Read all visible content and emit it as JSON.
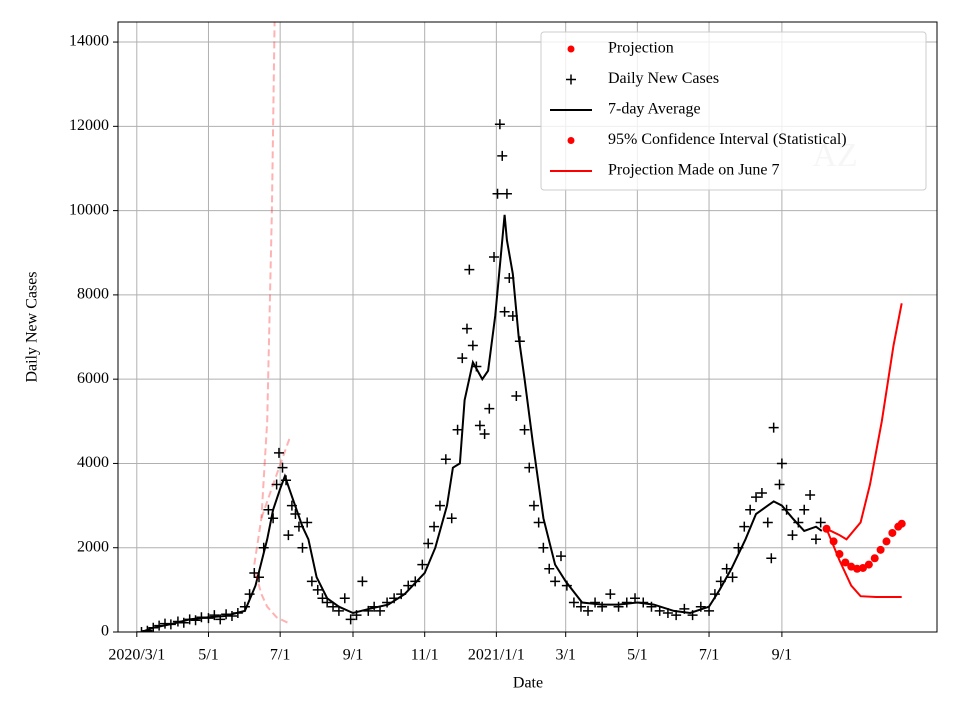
{
  "chart_data": {
    "type": "line",
    "xlabel": "Date",
    "ylabel": "Daily New Cases",
    "watermark": "AZ",
    "grid": true,
    "legend": "upper right",
    "xlim": [
      "2020-02-14",
      "2022-01-11"
    ],
    "ylim": [
      0,
      14476
    ],
    "yticks": [
      0,
      2000,
      4000,
      6000,
      8000,
      10000,
      12000,
      14000
    ],
    "xticks": [
      {
        "value": "2020-03-01",
        "label": "2020/3/1"
      },
      {
        "value": "2020-05-01",
        "label": "5/1"
      },
      {
        "value": "2020-07-01",
        "label": "7/1"
      },
      {
        "value": "2020-09-01",
        "label": "9/1"
      },
      {
        "value": "2020-11-01",
        "label": "11/1"
      },
      {
        "value": "2021-01-01",
        "label": "2021/1/1"
      },
      {
        "value": "2021-03-01",
        "label": "3/1"
      },
      {
        "value": "2021-05-01",
        "label": "5/1"
      },
      {
        "value": "2021-07-01",
        "label": "7/1"
      },
      {
        "value": "2021-09-01",
        "label": "9/1"
      }
    ],
    "series": [
      {
        "name": "Projection",
        "color": "#ff0000",
        "marker": "dot",
        "x": [
          "2021-10-09",
          "2021-10-15",
          "2021-10-20",
          "2021-10-25",
          "2021-10-30",
          "2021-11-04",
          "2021-11-09",
          "2021-11-14",
          "2021-11-19",
          "2021-11-24",
          "2021-11-29",
          "2021-12-04",
          "2021-12-09",
          "2021-12-12"
        ],
        "values": [
          2450,
          2150,
          1850,
          1650,
          1550,
          1500,
          1520,
          1600,
          1750,
          1950,
          2150,
          2350,
          2500,
          2570
        ]
      },
      {
        "name": "Daily New Cases",
        "color": "#000000",
        "marker": "plus",
        "x": [
          "2020-03-05",
          "2020-03-10",
          "2020-03-15",
          "2020-03-20",
          "2020-03-25",
          "2020-03-30",
          "2020-04-05",
          "2020-04-10",
          "2020-04-15",
          "2020-04-20",
          "2020-04-25",
          "2020-05-01",
          "2020-05-06",
          "2020-05-11",
          "2020-05-16",
          "2020-05-21",
          "2020-05-26",
          "2020-06-01",
          "2020-06-05",
          "2020-06-09",
          "2020-06-13",
          "2020-06-17",
          "2020-06-21",
          "2020-06-25",
          "2020-06-28",
          "2020-06-30",
          "2020-07-03",
          "2020-07-06",
          "2020-07-08",
          "2020-07-11",
          "2020-07-14",
          "2020-07-17",
          "2020-07-20",
          "2020-07-24",
          "2020-07-28",
          "2020-08-02",
          "2020-08-06",
          "2020-08-10",
          "2020-08-15",
          "2020-08-20",
          "2020-08-25",
          "2020-08-30",
          "2020-09-04",
          "2020-09-09",
          "2020-09-14",
          "2020-09-19",
          "2020-09-24",
          "2020-09-30",
          "2020-10-06",
          "2020-10-12",
          "2020-10-18",
          "2020-10-24",
          "2020-10-30",
          "2020-11-04",
          "2020-11-09",
          "2020-11-14",
          "2020-11-19",
          "2020-11-24",
          "2020-11-29",
          "2020-12-03",
          "2020-12-07",
          "2020-12-09",
          "2020-12-12",
          "2020-12-15",
          "2020-12-18",
          "2020-12-22",
          "2020-12-26",
          "2020-12-30",
          "2021-01-02",
          "2021-01-04",
          "2021-01-06",
          "2021-01-08",
          "2021-01-10",
          "2021-01-12",
          "2021-01-15",
          "2021-01-18",
          "2021-01-21",
          "2021-01-25",
          "2021-01-29",
          "2021-02-02",
          "2021-02-06",
          "2021-02-10",
          "2021-02-15",
          "2021-02-20",
          "2021-02-25",
          "2021-03-02",
          "2021-03-08",
          "2021-03-14",
          "2021-03-20",
          "2021-03-26",
          "2021-04-01",
          "2021-04-08",
          "2021-04-15",
          "2021-04-22",
          "2021-04-29",
          "2021-05-06",
          "2021-05-13",
          "2021-05-20",
          "2021-05-27",
          "2021-06-03",
          "2021-06-10",
          "2021-06-17",
          "2021-06-24",
          "2021-07-01",
          "2021-07-06",
          "2021-07-11",
          "2021-07-16",
          "2021-07-21",
          "2021-07-26",
          "2021-07-31",
          "2021-08-05",
          "2021-08-10",
          "2021-08-15",
          "2021-08-20",
          "2021-08-23",
          "2021-08-25",
          "2021-08-30",
          "2021-09-01",
          "2021-09-05",
          "2021-09-10",
          "2021-09-15",
          "2021-09-20",
          "2021-09-25",
          "2021-09-30",
          "2021-10-04"
        ],
        "values": [
          0,
          30,
          100,
          150,
          200,
          180,
          250,
          220,
          300,
          280,
          350,
          330,
          400,
          300,
          420,
          380,
          450,
          600,
          900,
          1400,
          1300,
          2000,
          2900,
          2700,
          3500,
          4250,
          3900,
          3600,
          2300,
          3000,
          2800,
          2500,
          2000,
          2600,
          1200,
          1000,
          800,
          700,
          600,
          500,
          800,
          300,
          400,
          1200,
          500,
          600,
          500,
          700,
          800,
          900,
          1100,
          1200,
          1600,
          2100,
          2500,
          3000,
          4100,
          2700,
          4800,
          6500,
          7200,
          8600,
          6800,
          6300,
          4900,
          4700,
          5300,
          8900,
          10400,
          12050,
          11300,
          7600,
          10400,
          8400,
          7500,
          5600,
          6900,
          4800,
          3900,
          3000,
          2600,
          2000,
          1500,
          1200,
          1800,
          1100,
          700,
          600,
          500,
          700,
          600,
          900,
          600,
          700,
          800,
          700,
          600,
          500,
          450,
          400,
          550,
          400,
          600,
          500,
          900,
          1200,
          1500,
          1300,
          2000,
          2500,
          2900,
          3200,
          3300,
          2600,
          1750,
          4850,
          3500,
          4000,
          2900,
          2300,
          2600,
          2900,
          3250,
          2200,
          2600
        ]
      },
      {
        "name": "7-day Average",
        "color": "#000000",
        "marker": "line",
        "x": [
          "2020-03-05",
          "2020-03-15",
          "2020-04-01",
          "2020-04-15",
          "2020-05-01",
          "2020-05-15",
          "2020-06-01",
          "2020-06-10",
          "2020-06-20",
          "2020-06-25",
          "2020-07-01",
          "2020-07-05",
          "2020-07-10",
          "2020-07-15",
          "2020-07-20",
          "2020-07-25",
          "2020-08-01",
          "2020-08-10",
          "2020-08-20",
          "2020-09-01",
          "2020-09-15",
          "2020-10-01",
          "2020-10-15",
          "2020-11-01",
          "2020-11-10",
          "2020-11-20",
          "2020-11-25",
          "2020-12-01",
          "2020-12-05",
          "2020-12-12",
          "2020-12-20",
          "2020-12-25",
          "2020-12-31",
          "2021-01-05",
          "2021-01-08",
          "2021-01-10",
          "2021-01-15",
          "2021-01-20",
          "2021-01-25",
          "2021-02-01",
          "2021-02-10",
          "2021-02-20",
          "2021-03-01",
          "2021-03-15",
          "2021-04-01",
          "2021-04-15",
          "2021-05-01",
          "2021-05-15",
          "2021-06-01",
          "2021-06-15",
          "2021-07-01",
          "2021-07-10",
          "2021-07-20",
          "2021-08-01",
          "2021-08-10",
          "2021-08-20",
          "2021-08-25",
          "2021-09-01",
          "2021-09-10",
          "2021-09-20",
          "2021-09-30",
          "2021-10-05"
        ],
        "values": [
          0,
          100,
          200,
          300,
          350,
          380,
          500,
          1100,
          2200,
          2900,
          3400,
          3700,
          3300,
          2900,
          2500,
          2200,
          1300,
          800,
          600,
          450,
          550,
          650,
          900,
          1400,
          2000,
          3000,
          3900,
          4000,
          5500,
          6400,
          6000,
          6200,
          7500,
          9000,
          9900,
          9300,
          8500,
          7000,
          6000,
          4500,
          2700,
          1600,
          1200,
          700,
          650,
          650,
          700,
          650,
          500,
          450,
          600,
          1000,
          1500,
          2200,
          2800,
          3000,
          3100,
          3000,
          2700,
          2400,
          2500,
          2400
        ]
      },
      {
        "name": "95% Confidence Interval (Statistical)",
        "color": "#ff0000",
        "marker": "dot",
        "lines": [
          {
            "x": [
              "2021-10-09",
              "2021-10-20",
              "2021-10-26",
              "2021-11-07",
              "2021-11-15",
              "2021-11-25",
              "2021-12-05",
              "2021-12-12"
            ],
            "values": [
              2450,
              2300,
              2200,
              2600,
              3500,
              5000,
              6800,
              7800
            ]
          },
          {
            "x": [
              "2021-10-09",
              "2021-10-20",
              "2021-10-30",
              "2021-11-07",
              "2021-11-20",
              "2021-12-12"
            ],
            "values": [
              2450,
              1700,
              1100,
              850,
              830,
              830
            ]
          }
        ]
      },
      {
        "name": "Projection Made on June 7",
        "color": "#ff0000",
        "marker": "line",
        "lines": [
          {
            "x": [
              "2020-06-09",
              "2020-06-15",
              "2020-06-20",
              "2020-06-24",
              "2020-06-27"
            ],
            "values": [
              1600,
              2700,
              5000,
              10000,
              16000
            ]
          },
          {
            "x": [
              "2020-06-15",
              "2020-06-25",
              "2020-07-09"
            ],
            "values": [
              2700,
              3500,
              4600
            ]
          },
          {
            "x": [
              "2020-06-10",
              "2020-06-15",
              "2020-06-20",
              "2020-06-28",
              "2020-07-09"
            ],
            "values": [
              1400,
              900,
              600,
              350,
              200
            ]
          }
        ]
      }
    ]
  }
}
